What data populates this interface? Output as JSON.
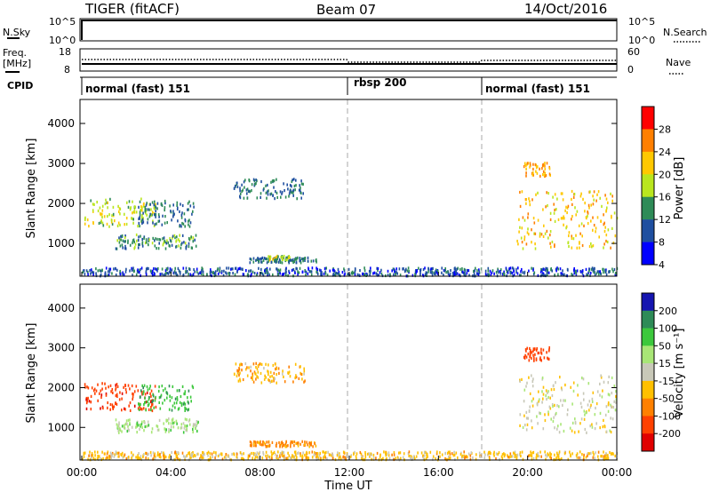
{
  "header": {
    "title": "TIGER (fitACF)",
    "beam": "Beam 07",
    "date": "14/Oct/2016"
  },
  "top_panels": {
    "nsky_label": "N.Sky",
    "nsky_ticks": [
      "10^5",
      "10^0"
    ],
    "nsearch_label": "N.Search",
    "nsearch_ticks": [
      "10^5",
      "10^0"
    ],
    "freq_label_1": "Freq.",
    "freq_label_2": "[MHz]",
    "freq_ticks": [
      "18",
      "8"
    ],
    "nave_label": "Nave",
    "nave_ticks": [
      "60",
      "0"
    ],
    "cpid_label": "CPID",
    "cpid_segments": [
      {
        "label": "normal (fast) 151",
        "start_hour": 0
      },
      {
        "label": "rbsp 200",
        "start_hour": 12
      },
      {
        "label": "normal (fast) 151",
        "start_hour": 18
      }
    ]
  },
  "chart_data": [
    {
      "type": "heatmap",
      "name": "power",
      "ylabel": "Slant Range [km]",
      "ylim": [
        180,
        4600
      ],
      "xlim": [
        0,
        24
      ],
      "y_ticks": [
        "4000",
        "3000",
        "2000",
        "1000"
      ],
      "y_tick_values": [
        4000,
        3000,
        2000,
        1000
      ],
      "colorbar_label": "Power [dB]",
      "colorbar_ticks": [
        "28",
        "24",
        "20",
        "16",
        "12",
        "8",
        "4"
      ],
      "colorbar_colors": [
        "#ff0000",
        "#ff7f00",
        "#ffc800",
        "#b9e61e",
        "#2e8b57",
        "#1f4fa0",
        "#0000ff"
      ],
      "features": [
        {
          "t0": 0.1,
          "t1": 3.3,
          "r0": 1450,
          "r1": 2150,
          "level": 14
        },
        {
          "t0": 2.5,
          "t1": 5.0,
          "r0": 1450,
          "r1": 2100,
          "level": 8
        },
        {
          "t0": 1.5,
          "t1": 5.2,
          "r0": 900,
          "r1": 1250,
          "level": 10
        },
        {
          "t0": 6.8,
          "t1": 10.0,
          "r0": 2150,
          "r1": 2650,
          "level": 8
        },
        {
          "t0": 7.5,
          "t1": 10.5,
          "r0": 550,
          "r1": 680,
          "level": 8
        },
        {
          "t0": 8.3,
          "t1": 9.3,
          "r0": 620,
          "r1": 720,
          "level": 14
        },
        {
          "t0": 19.5,
          "t1": 24.0,
          "r0": 900,
          "r1": 2350,
          "level": 18
        },
        {
          "t0": 19.8,
          "t1": 21.0,
          "r0": 2700,
          "r1": 3050,
          "level": 20
        },
        {
          "t0": 0.0,
          "t1": 24.0,
          "r0": 220,
          "r1": 420,
          "level": 6
        }
      ]
    },
    {
      "type": "heatmap",
      "name": "velocity",
      "ylabel": "Slant Range [km]",
      "xlabel": "Time UT",
      "ylim": [
        180,
        4600
      ],
      "xlim": [
        0,
        24
      ],
      "y_ticks": [
        "4000",
        "3000",
        "2000",
        "1000"
      ],
      "y_tick_values": [
        4000,
        3000,
        2000,
        1000
      ],
      "x_ticks": [
        "00:00",
        "04:00",
        "08:00",
        "12:00",
        "16:00",
        "20:00",
        "00:00"
      ],
      "x_tick_values": [
        0,
        4,
        8,
        12,
        16,
        20,
        24
      ],
      "colorbar_label": "Velocity [m s⁻¹]",
      "colorbar_ticks": [
        "200",
        "100",
        "50",
        "15",
        "-15",
        "-50",
        "-100",
        "-200"
      ],
      "colorbar_colors": [
        "#1515b0",
        "#2e8b57",
        "#3cc83c",
        "#a8e676",
        "#c8c8b8",
        "#ffc000",
        "#ff8000",
        "#ff4000",
        "#e00000"
      ],
      "features": [
        {
          "t0": 0.1,
          "t1": 3.3,
          "r0": 1450,
          "r1": 2150,
          "level": -180
        },
        {
          "t0": 2.5,
          "t1": 5.0,
          "r0": 1450,
          "r1": 2100,
          "level": 80
        },
        {
          "t0": 1.5,
          "t1": 5.2,
          "r0": 900,
          "r1": 1250,
          "level": 30
        },
        {
          "t0": 6.8,
          "t1": 10.0,
          "r0": 2150,
          "r1": 2650,
          "level": -40
        },
        {
          "t0": 7.5,
          "t1": 10.5,
          "r0": 550,
          "r1": 680,
          "level": -70
        },
        {
          "t0": 19.5,
          "t1": 24.0,
          "r0": 900,
          "r1": 2350,
          "level": 0
        },
        {
          "t0": 19.8,
          "t1": 21.0,
          "r0": 2700,
          "r1": 3050,
          "level": -150
        },
        {
          "t0": 0.0,
          "t1": 24.0,
          "r0": 220,
          "r1": 420,
          "level": -30
        }
      ]
    }
  ]
}
